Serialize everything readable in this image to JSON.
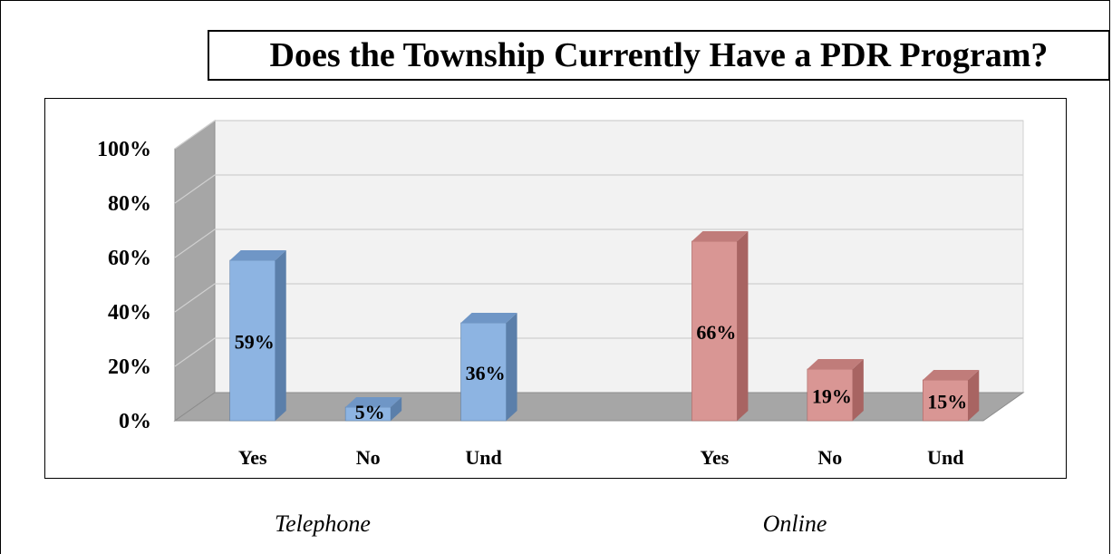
{
  "chart_data": {
    "type": "bar",
    "title": "Does the Township Currently Have a PDR Program?",
    "categories": [
      "Yes",
      "No",
      "Und",
      "Yes",
      "No",
      "Und"
    ],
    "groups": [
      {
        "name": "Telephone",
        "categories": [
          "Yes",
          "No",
          "Und"
        ],
        "values": [
          59,
          5,
          36
        ],
        "labels": [
          "59%",
          "5%",
          "36%"
        ],
        "color": "#8DB4E2",
        "side_color": "#5B7FAA",
        "top_color": "#6F96C6"
      },
      {
        "name": "Online",
        "categories": [
          "Yes",
          "No",
          "Und"
        ],
        "values": [
          66,
          19,
          15
        ],
        "labels": [
          "66%",
          "19%",
          "15%"
        ],
        "color": "#D99694",
        "side_color": "#A86462",
        "top_color": "#C07C7A"
      }
    ],
    "ylim": [
      0,
      100
    ],
    "yticks": [
      "0%",
      "20%",
      "40%",
      "60%",
      "80%",
      "100%"
    ],
    "grid": true,
    "three_d": true
  }
}
